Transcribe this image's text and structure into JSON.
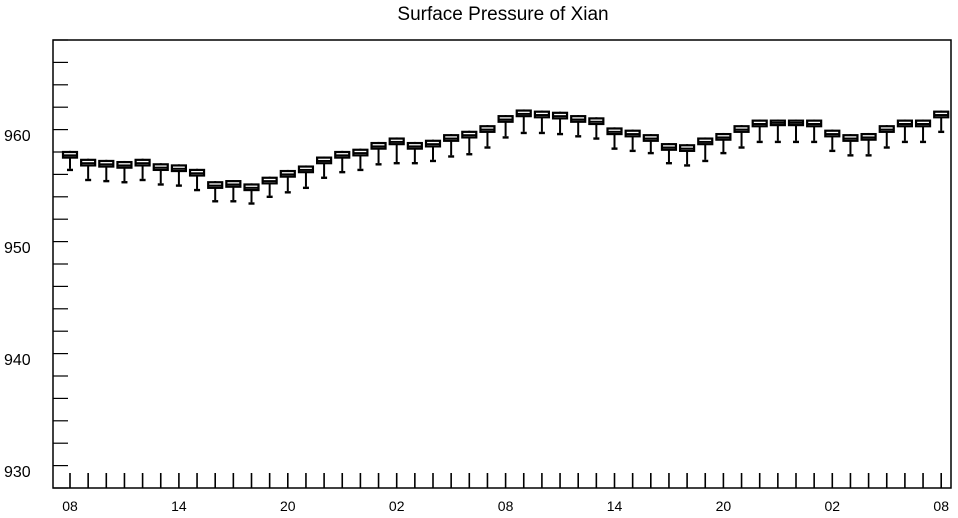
{
  "chart_data": {
    "type": "boxplot",
    "title": "Surface Pressure of Xian",
    "xlabel": "",
    "ylabel": "",
    "ylim": [
      928.5,
      968.5
    ],
    "y_ticks": [
      930,
      940,
      950,
      960
    ],
    "x_tick_labels": [
      "08",
      "14",
      "20",
      "02",
      "08",
      "14",
      "20",
      "02",
      "08"
    ],
    "x_tick_every": 6,
    "grid": false,
    "colors": {
      "box": "#000000",
      "axis": "#000000",
      "background": "#ffffff"
    },
    "series": [
      {
        "x": 0,
        "q1": 958.0,
        "median": 958.2,
        "q3": 958.5,
        "low": 957.0,
        "high": 958.6,
        "outlier": 956.9
      },
      {
        "x": 1,
        "q1": 957.3,
        "median": 957.5,
        "q3": 957.8,
        "low": 956.1,
        "high": 957.9,
        "outlier": 956.0
      },
      {
        "x": 2,
        "q1": 957.2,
        "median": 957.4,
        "q3": 957.7,
        "low": 956.0,
        "high": 957.8,
        "outlier": 955.9
      },
      {
        "x": 3,
        "q1": 957.1,
        "median": 957.3,
        "q3": 957.6,
        "low": 955.9,
        "high": 957.7,
        "outlier": 955.8
      },
      {
        "x": 4,
        "q1": 957.3,
        "median": 957.5,
        "q3": 957.8,
        "low": 956.1,
        "high": 957.9,
        "outlier": 956.0
      },
      {
        "x": 5,
        "q1": 956.9,
        "median": 957.1,
        "q3": 957.4,
        "low": 955.7,
        "high": 957.5,
        "outlier": 955.6
      },
      {
        "x": 6,
        "q1": 956.8,
        "median": 957.0,
        "q3": 957.3,
        "low": 955.6,
        "high": 957.4,
        "outlier": 955.5
      },
      {
        "x": 7,
        "q1": 956.4,
        "median": 956.6,
        "q3": 956.9,
        "low": 955.2,
        "high": 957.0,
        "outlier": 955.1
      },
      {
        "x": 8,
        "q1": 955.3,
        "median": 955.5,
        "q3": 955.8,
        "low": 954.2,
        "high": 955.9,
        "outlier": 954.1
      },
      {
        "x": 9,
        "q1": 955.4,
        "median": 955.6,
        "q3": 955.9,
        "low": 954.2,
        "high": 956.0,
        "outlier": 954.1
      },
      {
        "x": 10,
        "q1": 955.1,
        "median": 955.3,
        "q3": 955.6,
        "low": 954.0,
        "high": 955.7,
        "outlier": 953.9
      },
      {
        "x": 11,
        "q1": 955.7,
        "median": 955.9,
        "q3": 956.2,
        "low": 954.6,
        "high": 956.3,
        "outlier": 954.5
      },
      {
        "x": 12,
        "q1": 956.3,
        "median": 956.5,
        "q3": 956.8,
        "low": 955.0,
        "high": 956.9,
        "outlier": 954.9
      },
      {
        "x": 13,
        "q1": 956.7,
        "median": 956.9,
        "q3": 957.2,
        "low": 955.4,
        "high": 957.3,
        "outlier": 955.3
      },
      {
        "x": 14,
        "q1": 957.5,
        "median": 957.7,
        "q3": 958.0,
        "low": 956.3,
        "high": 958.1,
        "outlier": 956.2
      },
      {
        "x": 15,
        "q1": 958.0,
        "median": 958.2,
        "q3": 958.5,
        "low": 956.8,
        "high": 958.6,
        "outlier": 956.7
      },
      {
        "x": 16,
        "q1": 958.2,
        "median": 958.4,
        "q3": 958.7,
        "low": 957.0,
        "high": 958.8,
        "outlier": 956.9
      },
      {
        "x": 17,
        "q1": 958.8,
        "median": 959.0,
        "q3": 959.3,
        "low": 957.5,
        "high": 959.4,
        "outlier": 957.4
      },
      {
        "x": 18,
        "q1": 959.2,
        "median": 959.4,
        "q3": 959.7,
        "low": 957.6,
        "high": 959.8,
        "outlier": 957.5
      },
      {
        "x": 19,
        "q1": 958.8,
        "median": 959.0,
        "q3": 959.3,
        "low": 957.6,
        "high": 959.4,
        "outlier": 957.5
      },
      {
        "x": 20,
        "q1": 959.0,
        "median": 959.2,
        "q3": 959.5,
        "low": 957.8,
        "high": 959.6,
        "outlier": 957.7
      },
      {
        "x": 21,
        "q1": 959.5,
        "median": 959.7,
        "q3": 960.0,
        "low": 958.2,
        "high": 960.1,
        "outlier": 958.1
      },
      {
        "x": 22,
        "q1": 959.8,
        "median": 960.0,
        "q3": 960.3,
        "low": 958.4,
        "high": 960.4,
        "outlier": 958.3
      },
      {
        "x": 23,
        "q1": 960.3,
        "median": 960.5,
        "q3": 960.8,
        "low": 959.0,
        "high": 960.9,
        "outlier": 958.9
      },
      {
        "x": 24,
        "q1": 961.2,
        "median": 961.4,
        "q3": 961.7,
        "low": 959.9,
        "high": 961.8,
        "outlier": 959.8
      },
      {
        "x": 25,
        "q1": 961.7,
        "median": 961.9,
        "q3": 962.2,
        "low": 960.3,
        "high": 962.3,
        "outlier": 960.2
      },
      {
        "x": 26,
        "q1": 961.6,
        "median": 961.8,
        "q3": 962.1,
        "low": 960.3,
        "high": 962.2,
        "outlier": 960.2
      },
      {
        "x": 27,
        "q1": 961.5,
        "median": 961.7,
        "q3": 962.0,
        "low": 960.2,
        "high": 962.1,
        "outlier": 960.1
      },
      {
        "x": 28,
        "q1": 961.2,
        "median": 961.4,
        "q3": 961.7,
        "low": 960.0,
        "high": 961.8,
        "outlier": 959.9
      },
      {
        "x": 29,
        "q1": 961.0,
        "median": 961.2,
        "q3": 961.5,
        "low": 959.8,
        "high": 961.6,
        "outlier": 959.7
      },
      {
        "x": 30,
        "q1": 960.1,
        "median": 960.3,
        "q3": 960.6,
        "low": 958.9,
        "high": 960.7,
        "outlier": 958.8
      },
      {
        "x": 31,
        "q1": 959.9,
        "median": 960.1,
        "q3": 960.4,
        "low": 958.7,
        "high": 960.5,
        "outlier": 958.6
      },
      {
        "x": 32,
        "q1": 959.5,
        "median": 959.7,
        "q3": 960.0,
        "low": 958.5,
        "high": 960.1,
        "outlier": 958.4
      },
      {
        "x": 33,
        "q1": 958.7,
        "median": 958.9,
        "q3": 959.2,
        "low": 957.6,
        "high": 959.3,
        "outlier": 957.5
      },
      {
        "x": 34,
        "q1": 958.6,
        "median": 958.8,
        "q3": 959.1,
        "low": 957.4,
        "high": 959.2,
        "outlier": 957.3
      },
      {
        "x": 35,
        "q1": 959.2,
        "median": 959.4,
        "q3": 959.7,
        "low": 957.8,
        "high": 959.8,
        "outlier": 957.7
      },
      {
        "x": 36,
        "q1": 959.6,
        "median": 959.8,
        "q3": 960.1,
        "low": 958.5,
        "high": 960.2,
        "outlier": 958.4
      },
      {
        "x": 37,
        "q1": 960.3,
        "median": 960.5,
        "q3": 960.8,
        "low": 959.0,
        "high": 960.9,
        "outlier": 958.9
      },
      {
        "x": 38,
        "q1": 960.8,
        "median": 961.0,
        "q3": 961.3,
        "low": 959.5,
        "high": 961.4,
        "outlier": 959.4
      },
      {
        "x": 39,
        "q1": 960.9,
        "median": 961.1,
        "q3": 961.3,
        "low": 959.5,
        "high": 961.4,
        "outlier": 959.4
      },
      {
        "x": 40,
        "q1": 960.9,
        "median": 961.1,
        "q3": 961.3,
        "low": 959.5,
        "high": 961.4,
        "outlier": 959.4
      },
      {
        "x": 41,
        "q1": 960.8,
        "median": 961.0,
        "q3": 961.3,
        "low": 959.5,
        "high": 961.4,
        "outlier": 959.4
      },
      {
        "x": 42,
        "q1": 959.9,
        "median": 960.1,
        "q3": 960.4,
        "low": 958.7,
        "high": 960.5,
        "outlier": 958.6
      },
      {
        "x": 43,
        "q1": 959.5,
        "median": 959.7,
        "q3": 960.0,
        "low": 958.3,
        "high": 960.1,
        "outlier": 958.2
      },
      {
        "x": 44,
        "q1": 959.6,
        "median": 959.8,
        "q3": 960.1,
        "low": 958.3,
        "high": 960.2,
        "outlier": 958.2
      },
      {
        "x": 45,
        "q1": 960.3,
        "median": 960.5,
        "q3": 960.8,
        "low": 959.0,
        "high": 960.9,
        "outlier": 958.9
      },
      {
        "x": 46,
        "q1": 960.8,
        "median": 961.0,
        "q3": 961.3,
        "low": 959.5,
        "high": 961.4,
        "outlier": 959.4
      },
      {
        "x": 47,
        "q1": 960.8,
        "median": 961.0,
        "q3": 961.3,
        "low": 959.5,
        "high": 961.4,
        "outlier": 959.4
      },
      {
        "x": 48,
        "q1": 961.6,
        "median": 961.8,
        "q3": 962.1,
        "low": 960.4,
        "high": 962.2,
        "outlier": 960.3
      }
    ]
  }
}
